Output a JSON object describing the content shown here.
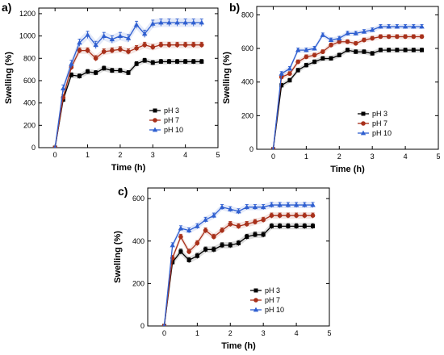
{
  "chart_data": [
    {
      "panel_label": "a)",
      "type": "line",
      "xlabel": "Time (h)",
      "ylabel": "Swelling (%)",
      "xlim": [
        -0.5,
        5
      ],
      "ylim": [
        0,
        1250
      ],
      "xticks": [
        0,
        1,
        2,
        3,
        4,
        5
      ],
      "yticks": [
        0,
        200,
        400,
        600,
        800,
        1000,
        1200
      ],
      "x": [
        0,
        0.25,
        0.5,
        0.75,
        1,
        1.25,
        1.5,
        1.75,
        2,
        2.25,
        2.5,
        2.75,
        3,
        3.25,
        3.5,
        3.75,
        4,
        4.25,
        4.5
      ],
      "legend_position": "bottom-right",
      "series": [
        {
          "name": "pH 3",
          "color": "#000000",
          "marker": "square",
          "values": [
            0,
            430,
            650,
            640,
            680,
            670,
            710,
            690,
            690,
            670,
            750,
            780,
            760,
            770,
            770,
            770,
            770,
            770,
            770
          ],
          "error": 25
        },
        {
          "name": "pH 7",
          "color": "#a8301a",
          "marker": "circle",
          "values": [
            0,
            450,
            720,
            870,
            870,
            800,
            860,
            870,
            880,
            860,
            890,
            920,
            900,
            920,
            920,
            920,
            920,
            920,
            920
          ],
          "error": 30
        },
        {
          "name": "pH 10",
          "color": "#2f5fd0",
          "marker": "triangle",
          "values": [
            0,
            530,
            750,
            940,
            1010,
            920,
            1000,
            970,
            1000,
            980,
            1100,
            1020,
            1110,
            1120,
            1120,
            1120,
            1120,
            1120,
            1120
          ],
          "error": 40
        }
      ]
    },
    {
      "panel_label": "b)",
      "type": "line",
      "xlabel": "Time (h)",
      "ylabel": "Swelling (%)",
      "xlim": [
        -0.5,
        5
      ],
      "ylim": [
        0,
        850
      ],
      "xticks": [
        0,
        1,
        2,
        3,
        4,
        5
      ],
      "yticks": [
        0,
        200,
        400,
        600,
        800
      ],
      "x": [
        0,
        0.25,
        0.5,
        0.75,
        1,
        1.25,
        1.5,
        1.75,
        2,
        2.25,
        2.5,
        2.75,
        3,
        3.25,
        3.5,
        3.75,
        4,
        4.25,
        4.5
      ],
      "legend_position": "bottom-right",
      "series": [
        {
          "name": "pH 3",
          "color": "#000000",
          "marker": "square",
          "values": [
            0,
            380,
            410,
            470,
            500,
            520,
            540,
            540,
            560,
            590,
            580,
            580,
            570,
            590,
            590,
            590,
            590,
            590,
            590
          ],
          "error": 15
        },
        {
          "name": "pH 7",
          "color": "#a8301a",
          "marker": "circle",
          "values": [
            0,
            430,
            450,
            520,
            550,
            560,
            580,
            620,
            640,
            640,
            630,
            650,
            660,
            670,
            670,
            670,
            670,
            670,
            670
          ],
          "error": 15
        },
        {
          "name": "pH 10",
          "color": "#2f5fd0",
          "marker": "triangle",
          "values": [
            0,
            450,
            480,
            590,
            590,
            600,
            680,
            650,
            660,
            690,
            690,
            700,
            710,
            730,
            730,
            730,
            730,
            730,
            730
          ],
          "error": 15
        }
      ]
    },
    {
      "panel_label": "c)",
      "type": "line",
      "xlabel": "Time (h)",
      "ylabel": "Swelling (%)",
      "xlim": [
        -0.5,
        5
      ],
      "ylim": [
        0,
        650
      ],
      "xticks": [
        0,
        1,
        2,
        3,
        4,
        5
      ],
      "yticks": [
        0,
        200,
        400,
        600
      ],
      "x": [
        0,
        0.25,
        0.5,
        0.75,
        1,
        1.25,
        1.5,
        1.75,
        2,
        2.25,
        2.5,
        2.75,
        3,
        3.25,
        3.5,
        3.75,
        4,
        4.25,
        4.5
      ],
      "legend_position": "bottom-right",
      "series": [
        {
          "name": "pH 3",
          "color": "#000000",
          "marker": "square",
          "values": [
            0,
            300,
            350,
            310,
            330,
            360,
            360,
            380,
            380,
            390,
            420,
            430,
            430,
            470,
            470,
            470,
            470,
            470,
            470
          ],
          "error": 15
        },
        {
          "name": "pH 7",
          "color": "#a8301a",
          "marker": "circle",
          "values": [
            0,
            320,
            420,
            350,
            390,
            450,
            420,
            450,
            480,
            470,
            480,
            490,
            500,
            520,
            520,
            520,
            520,
            520,
            520
          ],
          "error": 15
        },
        {
          "name": "pH 10",
          "color": "#2f5fd0",
          "marker": "triangle",
          "values": [
            0,
            380,
            460,
            450,
            470,
            500,
            520,
            560,
            550,
            540,
            560,
            560,
            560,
            570,
            570,
            570,
            570,
            570,
            570
          ],
          "error": 15
        }
      ]
    }
  ]
}
